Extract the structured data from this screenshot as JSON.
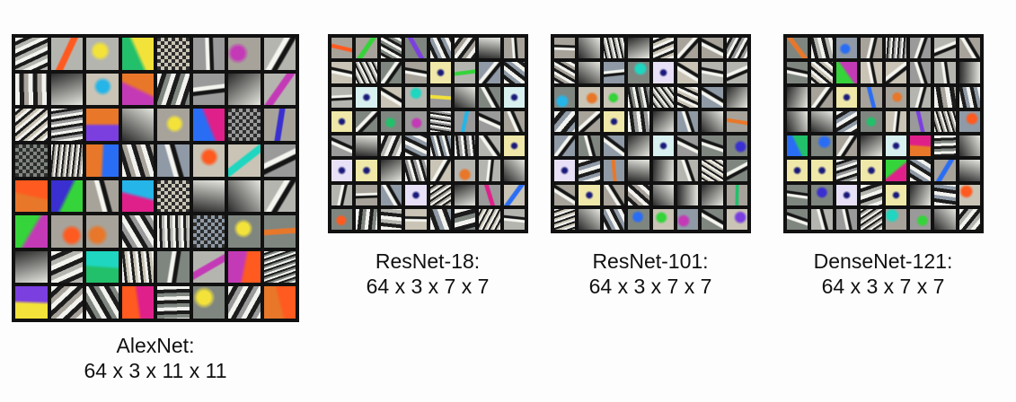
{
  "panels": [
    {
      "id": "alexnet",
      "name": "AlexNet:",
      "shape": "64 x 3 x 11 x 11",
      "filters": 64
    },
    {
      "id": "resnet18",
      "name": "ResNet-18:",
      "shape": "64 x 3 x 7 x 7",
      "filters": 64
    },
    {
      "id": "resnet101",
      "name": "ResNet-101:",
      "shape": "64 x 3 x 7 x 7",
      "filters": 64
    },
    {
      "id": "densenet121",
      "name": "DenseNet-121:",
      "shape": "64 x 3 x 7 x 7",
      "filters": 64
    }
  ],
  "colors": {
    "background": "#fdfdfd",
    "grid_frame": "#111111",
    "caption_text": "#111111"
  }
}
